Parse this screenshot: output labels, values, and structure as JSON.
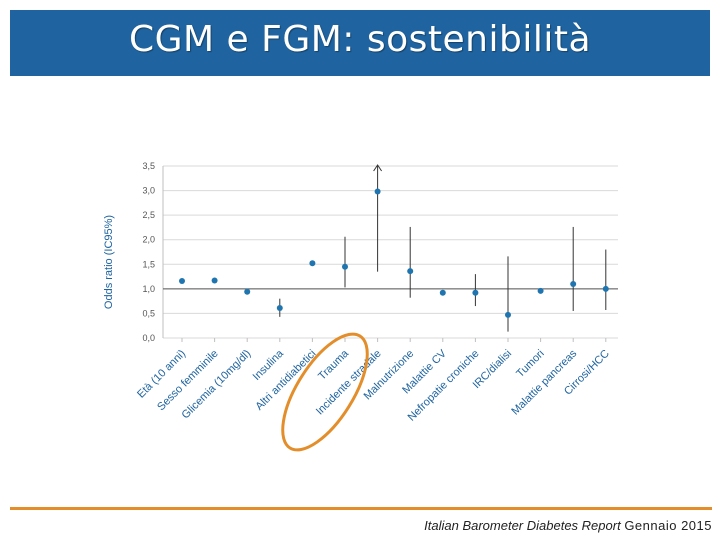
{
  "slide": {
    "title": "CGM e FGM: sostenibilità"
  },
  "footer": {
    "source": "Italian Barometer Diabetes Report",
    "date": "Gennaio 2015"
  },
  "colors": {
    "title_bg": "#1f64a0",
    "marker": "#1f75b0",
    "highlight_ellipse": "#e38e2b",
    "footer_line": "#e38e2b"
  },
  "chart_data": {
    "type": "scatter",
    "ylabel": "Odds ratio (IC95%)",
    "ylim": [
      0,
      3.5
    ],
    "yticks": [
      "0,0",
      "0,5",
      "1,0",
      "1,5",
      "2,0",
      "2,5",
      "3,0",
      "3,5"
    ],
    "reference_line": 1.0,
    "grid": true,
    "categories": [
      "Età (10 anni)",
      "Sesso femminile",
      "Glicemia (10mg/dl)",
      "Insulina",
      "Altri antidiabetici",
      "Trauma",
      "Incidente stradale",
      "Malnutrizione",
      "Malattie CV",
      "Nefropatie croniche",
      "IRC/dialisi",
      "Tumori",
      "Malattie pancreas",
      "Cirrosi/HCC"
    ],
    "series": [
      {
        "values": [
          1.16,
          1.17,
          0.94,
          0.61,
          1.52,
          1.45,
          2.98,
          1.36,
          0.92,
          0.92,
          0.47,
          0.96,
          1.1,
          1.0
        ],
        "ci_low": [
          null,
          null,
          null,
          0.43,
          null,
          1.03,
          1.35,
          0.82,
          null,
          0.65,
          0.13,
          null,
          0.55,
          0.57
        ],
        "ci_high": [
          null,
          null,
          null,
          0.8,
          null,
          2.06,
          3.55,
          2.26,
          null,
          1.3,
          1.66,
          null,
          2.26,
          1.8
        ],
        "ci_high_clipped": [
          false,
          false,
          false,
          false,
          false,
          false,
          true,
          false,
          false,
          false,
          false,
          false,
          false,
          false
        ]
      }
    ],
    "highlighted_categories": [
      "Trauma",
      "Incidente stradale"
    ]
  }
}
